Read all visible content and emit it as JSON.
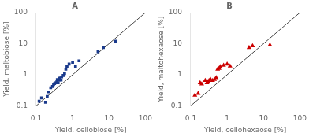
{
  "chart_data": [
    {
      "type": "scatter",
      "title": "A",
      "xlabel": "Yield, cellobiose [%]",
      "ylabel": "Yield, maltobiose [%]",
      "log": true,
      "grid": false,
      "xlim": [
        0.1,
        100
      ],
      "ylim": [
        0.1,
        100
      ],
      "xticks": [
        0.1,
        1,
        10,
        100
      ],
      "yticks": [
        0.1,
        1,
        10,
        100
      ],
      "series": [
        {
          "type": "line",
          "color": "#444444",
          "line_style": "solid",
          "x": [
            0.1,
            100
          ],
          "values": [
            0.1,
            100
          ]
        },
        {
          "type": "scatter",
          "color": "#1a3a8c",
          "marker": "square",
          "x": [
            0.12,
            0.14,
            0.18,
            0.2,
            0.22,
            0.25,
            0.28,
            0.3,
            0.32,
            0.35,
            0.37,
            0.38,
            0.4,
            0.42,
            0.43,
            0.45,
            0.48,
            0.5,
            0.55,
            0.6,
            0.65,
            0.7,
            0.8,
            1.0,
            1.2,
            1.5,
            5.0,
            7.0,
            15.0
          ],
          "values": [
            0.14,
            0.18,
            0.13,
            0.2,
            0.28,
            0.38,
            0.42,
            0.48,
            0.52,
            0.55,
            0.62,
            0.7,
            0.55,
            0.68,
            0.75,
            0.78,
            0.68,
            0.85,
            0.95,
            1.1,
            1.5,
            1.8,
            2.2,
            2.5,
            1.8,
            2.8,
            5.5,
            7.5,
            12.0
          ]
        }
      ]
    },
    {
      "type": "scatter",
      "title": "B",
      "xlabel": "Yield, cellohexaose [%]",
      "ylabel": "Yield, maltohexaose [%]",
      "log": true,
      "grid": false,
      "xlim": [
        0.1,
        100
      ],
      "ylim": [
        0.1,
        100
      ],
      "xticks": [
        0.1,
        1,
        10,
        100
      ],
      "yticks": [
        0.1,
        1,
        10,
        100
      ],
      "series": [
        {
          "type": "line",
          "color": "#444444",
          "line_style": "solid",
          "x": [
            0.1,
            100
          ],
          "values": [
            0.1,
            100
          ]
        },
        {
          "type": "scatter",
          "color": "#cc0000",
          "marker": "triangle",
          "x": [
            0.13,
            0.16,
            0.18,
            0.2,
            0.25,
            0.28,
            0.3,
            0.32,
            0.35,
            0.4,
            0.45,
            0.5,
            0.55,
            0.6,
            0.65,
            0.8,
            1.0,
            1.2,
            4.0,
            5.0,
            15.0
          ],
          "values": [
            0.22,
            0.25,
            0.55,
            0.5,
            0.65,
            0.55,
            0.6,
            0.65,
            0.7,
            0.65,
            0.7,
            0.8,
            1.5,
            1.6,
            1.8,
            2.0,
            2.2,
            1.9,
            7.5,
            8.5,
            9.0
          ]
        }
      ]
    }
  ]
}
